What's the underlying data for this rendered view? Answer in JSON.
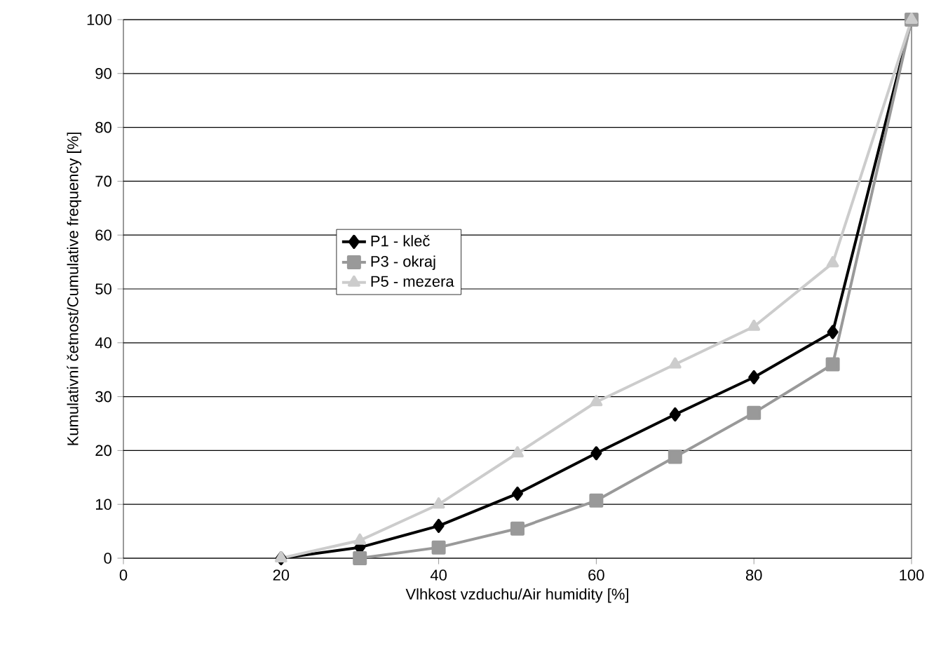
{
  "chart_data": {
    "type": "line",
    "xlabel": "Vlhkost vzduchu/Air humidity [%]",
    "ylabel": "Kumulativní četnost/Cumulative frequency [%]",
    "xlim": [
      0,
      100
    ],
    "xticks": [
      0,
      20,
      40,
      60,
      80,
      100
    ],
    "ylim": [
      0,
      100
    ],
    "yticks": [
      0,
      10,
      20,
      30,
      40,
      50,
      60,
      70,
      80,
      90,
      100
    ],
    "grid": "y",
    "legend": "left",
    "series": [
      {
        "name": "P1 - kleč",
        "color": "#000000",
        "marker": "diamond",
        "x": [
          20,
          30,
          40,
          50,
          60,
          70,
          80,
          90,
          100
        ],
        "values": [
          0,
          2,
          6,
          12,
          19.5,
          26.7,
          33.6,
          42,
          100
        ]
      },
      {
        "name": "P3 - okraj",
        "color": "#999999",
        "marker": "square",
        "x": [
          30,
          40,
          50,
          60,
          70,
          80,
          90,
          100
        ],
        "values": [
          0,
          2,
          5.5,
          10.7,
          18.8,
          27,
          36,
          100
        ]
      },
      {
        "name": "P5 - mezera",
        "color": "#cccccc",
        "marker": "triangle",
        "x": [
          20,
          30,
          40,
          50,
          60,
          70,
          80,
          90,
          100
        ],
        "values": [
          0,
          3.3,
          10,
          19.5,
          29,
          36,
          43,
          54.8,
          100
        ]
      }
    ]
  }
}
